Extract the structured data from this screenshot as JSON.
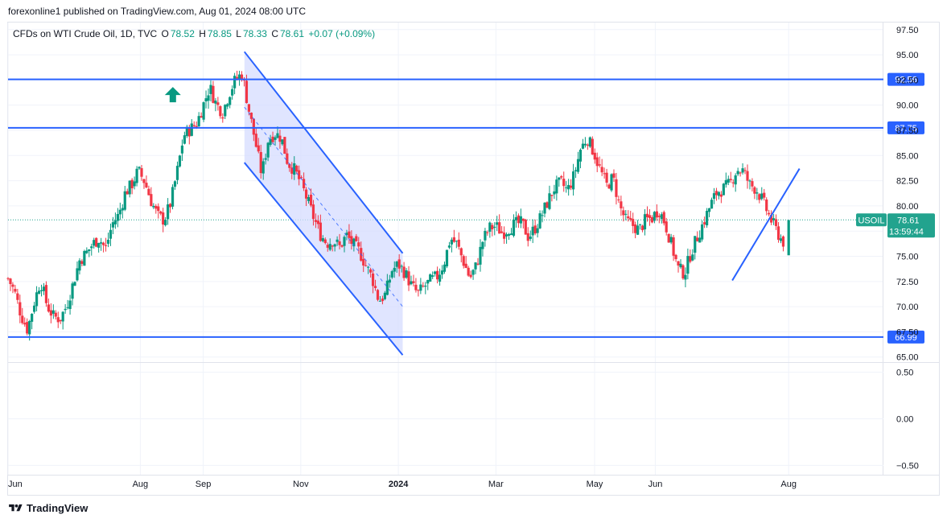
{
  "header": {
    "publisher_line": "forexonline1 published on TradingView.com, Aug 01, 2024 08:00 UTC"
  },
  "legend": {
    "title": "CFDs on WTI Crude Oil, 1D, TVC",
    "o_label": "O",
    "o_value": "78.52",
    "h_label": "H",
    "h_value": "78.85",
    "l_label": "L",
    "l_value": "78.33",
    "c_label": "C",
    "c_value": "78.61",
    "change": "+0.07 (+0.09%)"
  },
  "footer": {
    "brand": "TradingView"
  },
  "colors": {
    "up": "#089981",
    "down": "#f23645",
    "line": "#2962ff",
    "channel_fill": "#d6dcff",
    "accent_price": "#22a38e"
  },
  "icons": {
    "arrow": "up-arrow-icon",
    "logo": "tradingview-logo-icon"
  },
  "chart_data": [
    {
      "type": "candlestick",
      "symbol": "USOIL",
      "last_price": "78.61",
      "countdown": "13:59:44",
      "price_axis_ticks": [
        "97.50",
        "95.00",
        "92.50",
        "90.00",
        "87.50",
        "85.00",
        "82.50",
        "80.00",
        "77.50",
        "75.00",
        "72.50",
        "70.00",
        "67.50",
        "65.00"
      ],
      "ylim": [
        64.5,
        98.2
      ],
      "time_axis_labels": [
        "Jun",
        "Aug",
        "Sep",
        "Nov",
        "2024",
        "Mar",
        "May",
        "Jun",
        "Aug"
      ],
      "time_axis_label_days": [
        0,
        122,
        180,
        270,
        360,
        450,
        541,
        597,
        720
      ],
      "xlim": [
        0,
        800
      ],
      "horizontal_levels": [
        {
          "value": 92.56,
          "label": "92.56"
        },
        {
          "value": 87.75,
          "label": "87.75"
        },
        {
          "value": 66.99,
          "label": "66.99"
        }
      ],
      "trend_lines": [
        {
          "name": "channel-upper",
          "from": [
            218,
            95.3
          ],
          "to": [
            364,
            75.3
          ]
        },
        {
          "name": "channel-lower",
          "from": [
            218,
            84.3
          ],
          "to": [
            364,
            65.2
          ]
        },
        {
          "name": "channel-mid",
          "from": [
            218,
            89.8
          ],
          "to": [
            364,
            70.0
          ]
        },
        {
          "name": "rising-line",
          "from": [
            668,
            72.6
          ],
          "to": [
            730,
            83.7
          ]
        }
      ],
      "closes": [
        [
          0,
          72.8
        ],
        [
          6,
          71.5
        ],
        [
          12,
          69.2
        ],
        [
          18,
          67.7
        ],
        [
          24,
          70.4
        ],
        [
          30,
          72.6
        ],
        [
          36,
          70.1
        ],
        [
          42,
          69.0
        ],
        [
          48,
          68.8
        ],
        [
          54,
          70.1
        ],
        [
          60,
          72.3
        ],
        [
          66,
          74.6
        ],
        [
          72,
          75.3
        ],
        [
          78,
          76.2
        ],
        [
          84,
          76.8
        ],
        [
          90,
          75.7
        ],
        [
          96,
          78.2
        ],
        [
          102,
          79.1
        ],
        [
          108,
          81.3
        ],
        [
          114,
          82.1
        ],
        [
          120,
          83.5
        ],
        [
          126,
          82.4
        ],
        [
          132,
          80.5
        ],
        [
          138,
          79.0
        ],
        [
          144,
          78.6
        ],
        [
          150,
          80.3
        ],
        [
          156,
          83.4
        ],
        [
          162,
          87.0
        ],
        [
          168,
          87.6
        ],
        [
          174,
          88.2
        ],
        [
          180,
          90.0
        ],
        [
          186,
          91.8
        ],
        [
          192,
          90.1
        ],
        [
          198,
          89.3
        ],
        [
          204,
          91.2
        ],
        [
          210,
          92.6
        ],
        [
          216,
          93.1
        ],
        [
          222,
          89.6
        ],
        [
          228,
          86.4
        ],
        [
          234,
          83.1
        ],
        [
          240,
          86.6
        ],
        [
          246,
          87.2
        ],
        [
          252,
          86.8
        ],
        [
          258,
          84.3
        ],
        [
          264,
          83.6
        ],
        [
          270,
          82.3
        ],
        [
          276,
          80.6
        ],
        [
          282,
          78.8
        ],
        [
          288,
          77.2
        ],
        [
          294,
          76.3
        ],
        [
          300,
          76.6
        ],
        [
          306,
          75.9
        ],
        [
          312,
          77.1
        ],
        [
          318,
          76.2
        ],
        [
          324,
          75.5
        ],
        [
          330,
          74.1
        ],
        [
          336,
          72.8
        ],
        [
          342,
          70.6
        ],
        [
          348,
          71.2
        ],
        [
          354,
          73.6
        ],
        [
          360,
          74.2
        ],
        [
          366,
          73.4
        ],
        [
          372,
          72.1
        ],
        [
          378,
          71.3
        ],
        [
          384,
          72.0
        ],
        [
          390,
          72.6
        ],
        [
          396,
          73.0
        ],
        [
          402,
          74.3
        ],
        [
          408,
          76.8
        ],
        [
          414,
          76.2
        ],
        [
          420,
          74.5
        ],
        [
          426,
          72.8
        ],
        [
          432,
          74.1
        ],
        [
          438,
          76.6
        ],
        [
          444,
          77.8
        ],
        [
          450,
          78.0
        ],
        [
          456,
          77.3
        ],
        [
          462,
          77.8
        ],
        [
          468,
          78.2
        ],
        [
          474,
          78.3
        ],
        [
          480,
          76.9
        ],
        [
          486,
          77.8
        ],
        [
          492,
          79.0
        ],
        [
          498,
          80.5
        ],
        [
          504,
          81.8
        ],
        [
          510,
          82.3
        ],
        [
          516,
          81.5
        ],
        [
          522,
          83.0
        ],
        [
          528,
          85.6
        ],
        [
          534,
          86.8
        ],
        [
          540,
          85.4
        ],
        [
          546,
          83.6
        ],
        [
          552,
          82.0
        ],
        [
          558,
          82.8
        ],
        [
          564,
          80.0
        ],
        [
          570,
          78.5
        ],
        [
          576,
          78.1
        ],
        [
          582,
          77.6
        ],
        [
          588,
          78.6
        ],
        [
          594,
          78.8
        ],
        [
          600,
          79.7
        ],
        [
          606,
          78.3
        ],
        [
          612,
          76.1
        ],
        [
          618,
          73.8
        ],
        [
          624,
          73.3
        ],
        [
          630,
          75.4
        ],
        [
          636,
          77.0
        ],
        [
          642,
          78.5
        ],
        [
          648,
          80.1
        ],
        [
          654,
          81.4
        ],
        [
          660,
          81.7
        ],
        [
          666,
          82.2
        ],
        [
          672,
          83.6
        ],
        [
          678,
          83.5
        ],
        [
          684,
          82.1
        ],
        [
          690,
          81.7
        ],
        [
          696,
          80.5
        ],
        [
          702,
          79.0
        ],
        [
          708,
          77.7
        ],
        [
          714,
          76.5
        ],
        [
          720,
          76.2
        ]
      ]
    },
    {
      "type": "indicator-pane",
      "ticks": [
        "0.50",
        "0.00",
        "−0.50"
      ],
      "ylim": [
        -0.6,
        0.6
      ]
    }
  ]
}
